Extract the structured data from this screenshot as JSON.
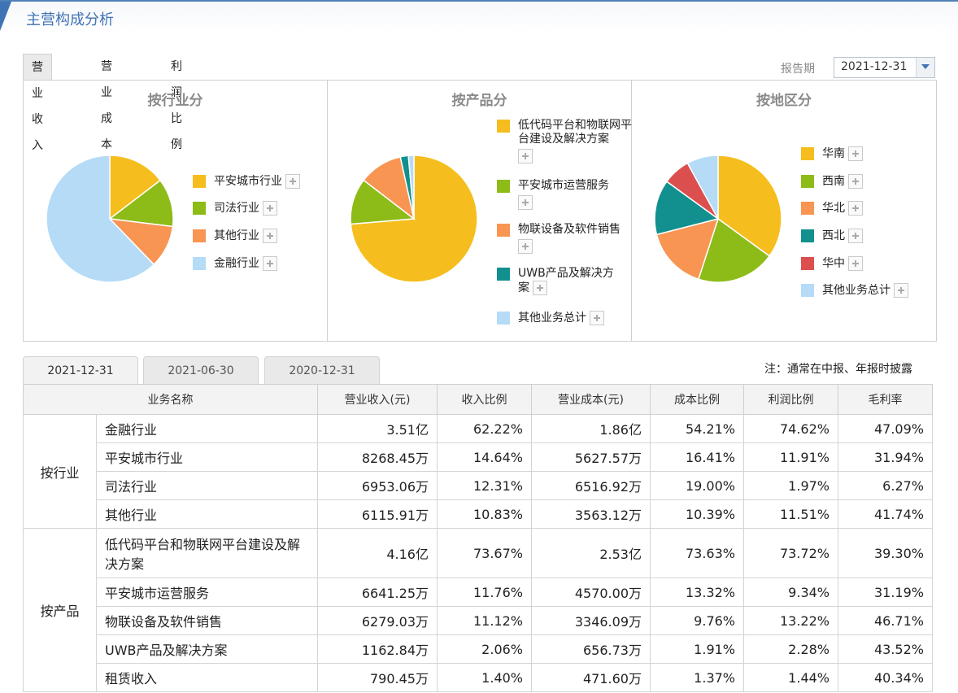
{
  "header": {
    "title": "主营构成分析"
  },
  "tabs": [
    {
      "label": "营业收入"
    },
    {
      "label": "营业成本"
    },
    {
      "label": "利润比例"
    }
  ],
  "report": {
    "label": "报告期",
    "value": "2021-12-31"
  },
  "charts": {
    "industry": {
      "title": "按行业分",
      "legend": [
        "平安城市行业",
        "司法行业",
        "其他行业",
        "金融行业"
      ]
    },
    "product": {
      "title": "按产品分",
      "legend": [
        "低代码平台和物联网平台建设及解决方案",
        "平安城市运营服务",
        "物联设备及软件销售",
        "UWB产品及解决方案",
        "其他业务总计"
      ]
    },
    "region": {
      "title": "按地区分",
      "legend": [
        "华南",
        "西南",
        "华北",
        "西北",
        "华中",
        "其他业务总计"
      ]
    }
  },
  "chart_data": [
    {
      "type": "pie",
      "title": "按行业分",
      "labels": [
        "平安城市行业",
        "司法行业",
        "其他行业",
        "金融行业"
      ],
      "values": [
        14.64,
        12.31,
        10.83,
        62.22
      ],
      "colors": [
        "#f5be1e",
        "#8dbb18",
        "#f89552",
        "#b5dbf7"
      ]
    },
    {
      "type": "pie",
      "title": "按产品分",
      "labels": [
        "低代码平台和物联网平台建设及解决方案",
        "平安城市运营服务",
        "物联设备及软件销售",
        "UWB产品及解决方案",
        "其他业务总计"
      ],
      "values": [
        73.67,
        11.76,
        11.12,
        2.06,
        1.4
      ],
      "colors": [
        "#f5be1e",
        "#8dbb18",
        "#f89552",
        "#11908f",
        "#b5dbf7"
      ]
    },
    {
      "type": "pie",
      "title": "按地区分",
      "labels": [
        "华南",
        "西南",
        "华北",
        "西北",
        "华中",
        "其他业务总计"
      ],
      "values": [
        35,
        20,
        16,
        14,
        7,
        8
      ],
      "colors": [
        "#f5be1e",
        "#8dbb18",
        "#f89552",
        "#11908f",
        "#db4f4f",
        "#b5dbf7"
      ]
    }
  ],
  "date_tabs": [
    "2021-12-31",
    "2021-06-30",
    "2020-12-31"
  ],
  "note": "注：通常在中报、年报时披露",
  "table": {
    "headers": [
      "业务名称",
      "营业收入(元)",
      "收入比例",
      "营业成本(元)",
      "成本比例",
      "利润比例",
      "毛利率"
    ],
    "groups": [
      {
        "name": "按行业",
        "rows": [
          [
            "金融行业",
            "3.51亿",
            "62.22%",
            "1.86亿",
            "54.21%",
            "74.62%",
            "47.09%"
          ],
          [
            "平安城市行业",
            "8268.45万",
            "14.64%",
            "5627.57万",
            "16.41%",
            "11.91%",
            "31.94%"
          ],
          [
            "司法行业",
            "6953.06万",
            "12.31%",
            "6516.92万",
            "19.00%",
            "1.97%",
            "6.27%"
          ],
          [
            "其他行业",
            "6115.91万",
            "10.83%",
            "3563.12万",
            "10.39%",
            "11.51%",
            "41.74%"
          ]
        ]
      },
      {
        "name": "按产品",
        "rows": [
          [
            "低代码平台和物联网平台建设及解决方案",
            "4.16亿",
            "73.67%",
            "2.53亿",
            "73.63%",
            "73.72%",
            "39.30%"
          ],
          [
            "平安城市运营服务",
            "6641.25万",
            "11.76%",
            "4570.00万",
            "13.32%",
            "9.34%",
            "31.19%"
          ],
          [
            "物联设备及软件销售",
            "6279.03万",
            "11.12%",
            "3346.09万",
            "9.76%",
            "13.22%",
            "46.71%"
          ],
          [
            "UWB产品及解决方案",
            "1162.84万",
            "2.06%",
            "656.73万",
            "1.91%",
            "2.28%",
            "43.52%"
          ],
          [
            "租赁收入",
            "790.45万",
            "1.40%",
            "471.60万",
            "1.37%",
            "1.44%",
            "40.34%"
          ]
        ]
      }
    ]
  }
}
